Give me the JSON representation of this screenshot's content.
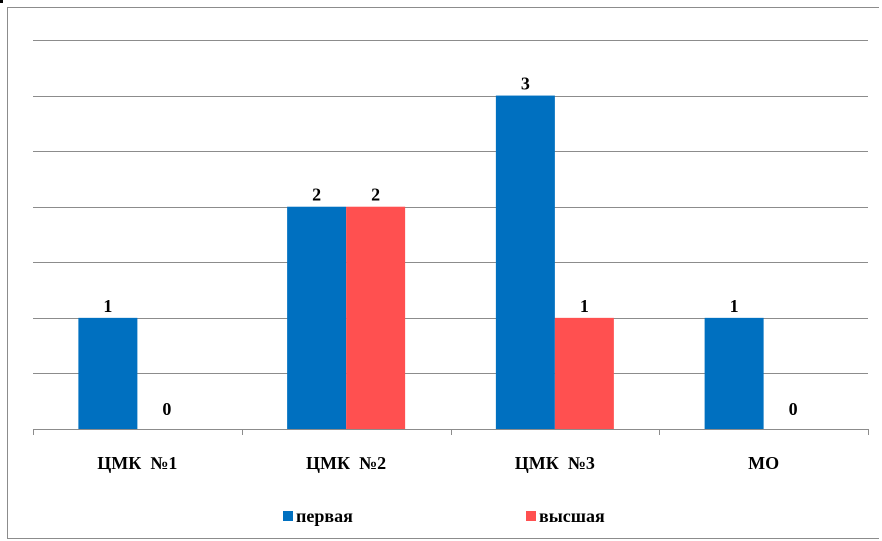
{
  "chart_data": {
    "type": "bar",
    "categories": [
      "ЦМК  №1",
      "ЦМК  №2",
      "ЦМК  №3",
      "МО"
    ],
    "series": [
      {
        "name": "первая",
        "values": [
          1,
          2,
          3,
          1
        ],
        "color": "#0070c0"
      },
      {
        "name": "высшая",
        "values": [
          0,
          2,
          1,
          0
        ],
        "color": "#ff5050"
      }
    ],
    "ylim": [
      0,
      3.5
    ],
    "gridline_step": 0.5,
    "grid": true,
    "legend": "bottom",
    "title": "",
    "xlabel": "",
    "ylabel": ""
  }
}
